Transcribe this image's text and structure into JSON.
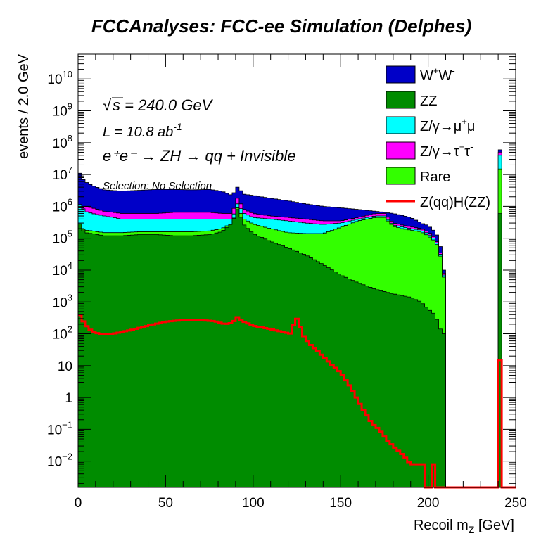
{
  "chart_data": {
    "type": "histogram",
    "title": "FCCAnalyses: FCC-ee Simulation (Delphes)",
    "xlabel": "Recoil m",
    "xlabel_sub": "Z",
    "xlabel_unit": " [GeV]",
    "ylabel": "events / 2.0 GeV",
    "x_range": [
      0,
      250
    ],
    "y_scale": "log",
    "y_range": [
      0.0015,
      60000000000
    ],
    "bin_width": 2.0,
    "x_ticks": [
      "0",
      "50",
      "100",
      "150",
      "200",
      "250"
    ],
    "y_ticks": [
      {
        "base": "10",
        "exp": "10",
        "value": 10000000000.0
      },
      {
        "base": "10",
        "exp": "9",
        "value": 1000000000.0
      },
      {
        "base": "10",
        "exp": "8",
        "value": 100000000.0
      },
      {
        "base": "10",
        "exp": "7",
        "value": 10000000.0
      },
      {
        "base": "10",
        "exp": "6",
        "value": 1000000.0
      },
      {
        "base": "10",
        "exp": "5",
        "value": 100000.0
      },
      {
        "base": "10",
        "exp": "4",
        "value": 10000.0
      },
      {
        "base": "10",
        "exp": "3",
        "value": 1000.0
      },
      {
        "base": "10",
        "exp": "2",
        "value": 100.0
      },
      {
        "base": "10",
        "exp": "",
        "value": 10
      },
      {
        "base": "1",
        "exp": "",
        "value": 1
      },
      {
        "base": "10",
        "exp": "−1",
        "value": 0.1
      },
      {
        "base": "10",
        "exp": "−2",
        "value": 0.01
      }
    ],
    "annotations": {
      "sqrt_s": "s = 240.0 GeV",
      "lumi": "L = 10.8 ab",
      "lumi_exp": "-1",
      "process": "e⁺e⁻ → ZH → qq + Invisible",
      "selection": "Selection: No Selection"
    },
    "legend_position": "top-right",
    "colors": {
      "ww": "#0000c8",
      "zz": "#008c00",
      "zgmumu": "#00ffff",
      "zgtautau": "#ff00ff",
      "rare": "#33ff00",
      "signal": "#ff0000"
    },
    "stack_top_curves": {
      "ww": [
        [
          0,
          15000000.0
        ],
        [
          2,
          8000000.0
        ],
        [
          4,
          6000000.0
        ],
        [
          8,
          4500000.0
        ],
        [
          15,
          3300000.0
        ],
        [
          25,
          3000000.0
        ],
        [
          35,
          3200000.0
        ],
        [
          45,
          3400000.0
        ],
        [
          55,
          3400000.0
        ],
        [
          65,
          3300000.0
        ],
        [
          75,
          3400000.0
        ],
        [
          82,
          3000000.0
        ],
        [
          88,
          2200000.0
        ],
        [
          91,
          4000000.0
        ],
        [
          95,
          2400000.0
        ],
        [
          100,
          2200000.0
        ],
        [
          110,
          1800000.0
        ],
        [
          120,
          1500000.0
        ],
        [
          130,
          1200000.0
        ],
        [
          140,
          1000000.0
        ],
        [
          150,
          900000.0
        ],
        [
          160,
          800000.0
        ],
        [
          170,
          700000.0
        ],
        [
          180,
          600000.0
        ],
        [
          190,
          450000.0
        ],
        [
          196,
          300000.0
        ],
        [
          200,
          250000.0
        ],
        [
          204,
          160000.0
        ],
        [
          206,
          100000.0
        ],
        [
          208,
          30000.0
        ],
        [
          209,
          10000.0
        ],
        [
          210,
          10000.0
        ]
      ],
      "zgtautau": [
        [
          0,
          1300000.0
        ],
        [
          2,
          1000000.0
        ],
        [
          4,
          1000000.0
        ],
        [
          8,
          900000.0
        ],
        [
          15,
          700000.0
        ],
        [
          25,
          600000.0
        ],
        [
          35,
          600000.0
        ],
        [
          45,
          600000.0
        ],
        [
          55,
          650000.0
        ],
        [
          65,
          650000.0
        ],
        [
          75,
          650000.0
        ],
        [
          82,
          600000.0
        ],
        [
          88,
          600000.0
        ],
        [
          91,
          1800000.0
        ],
        [
          95,
          800000.0
        ],
        [
          100,
          600000.0
        ],
        [
          110,
          500000.0
        ],
        [
          120,
          450000.0
        ],
        [
          130,
          400000.0
        ],
        [
          140,
          350000.0
        ],
        [
          150,
          350000.0
        ],
        [
          160,
          450000.0
        ],
        [
          170,
          600000.0
        ],
        [
          175,
          600000.0
        ],
        [
          180,
          300000.0
        ],
        [
          185,
          260000.0
        ],
        [
          190,
          230000.0
        ],
        [
          196,
          200000.0
        ],
        [
          200,
          160000.0
        ],
        [
          204,
          100000.0
        ],
        [
          206,
          60000.0
        ],
        [
          208,
          20000.0
        ],
        [
          209,
          8000.0
        ],
        [
          210,
          8000.0
        ]
      ],
      "zgmumu": [
        [
          0,
          1200000.0
        ],
        [
          2,
          1000000.0
        ],
        [
          4,
          700000.0
        ],
        [
          8,
          600000.0
        ],
        [
          15,
          500000.0
        ],
        [
          25,
          400000.0
        ],
        [
          35,
          400000.0
        ],
        [
          45,
          400000.0
        ],
        [
          55,
          400000.0
        ],
        [
          65,
          400000.0
        ],
        [
          75,
          400000.0
        ],
        [
          82,
          400000.0
        ],
        [
          88,
          400000.0
        ],
        [
          91,
          1200000.0
        ],
        [
          95,
          600000.0
        ],
        [
          100,
          450000.0
        ],
        [
          110,
          400000.0
        ],
        [
          120,
          350000.0
        ],
        [
          130,
          300000.0
        ],
        [
          140,
          270000.0
        ],
        [
          150,
          300000.0
        ],
        [
          160,
          400000.0
        ],
        [
          170,
          500000.0
        ],
        [
          175,
          500000.0
        ],
        [
          180,
          260000.0
        ],
        [
          185,
          230000.0
        ],
        [
          190,
          200000.0
        ],
        [
          196,
          180000.0
        ],
        [
          200,
          140000.0
        ],
        [
          204,
          90000.0
        ],
        [
          206,
          55000.0
        ],
        [
          208,
          18000.0
        ],
        [
          209,
          7000.0
        ],
        [
          210,
          7000.0
        ]
      ],
      "rare": [
        [
          0,
          400000.0
        ],
        [
          2,
          200000.0
        ],
        [
          4,
          180000.0
        ],
        [
          8,
          170000.0
        ],
        [
          15,
          150000.0
        ],
        [
          25,
          150000.0
        ],
        [
          35,
          160000.0
        ],
        [
          45,
          160000.0
        ],
        [
          55,
          160000.0
        ],
        [
          65,
          160000.0
        ],
        [
          75,
          170000.0
        ],
        [
          82,
          200000.0
        ],
        [
          88,
          300000.0
        ],
        [
          91,
          900000.0
        ],
        [
          95,
          400000.0
        ],
        [
          100,
          280000.0
        ],
        [
          110,
          200000.0
        ],
        [
          120,
          150000.0
        ],
        [
          130,
          140000.0
        ],
        [
          140,
          140000.0
        ],
        [
          150,
          220000.0
        ],
        [
          160,
          350000.0
        ],
        [
          170,
          450000.0
        ],
        [
          175,
          450000.0
        ],
        [
          180,
          240000.0
        ],
        [
          185,
          200000.0
        ],
        [
          190,
          180000.0
        ],
        [
          196,
          160000.0
        ],
        [
          200,
          120000.0
        ],
        [
          204,
          80000.0
        ],
        [
          206,
          50000.0
        ],
        [
          208,
          15000.0
        ],
        [
          209,
          6000.0
        ],
        [
          210,
          6000.0
        ]
      ],
      "zz": [
        [
          0,
          400000.0
        ],
        [
          2,
          200000.0
        ],
        [
          4,
          150000.0
        ],
        [
          8,
          140000.0
        ],
        [
          15,
          120000.0
        ],
        [
          25,
          120000.0
        ],
        [
          35,
          130000.0
        ],
        [
          45,
          130000.0
        ],
        [
          55,
          120000.0
        ],
        [
          65,
          120000.0
        ],
        [
          75,
          130000.0
        ],
        [
          82,
          160000.0
        ],
        [
          88,
          300000.0
        ],
        [
          91,
          800000.0
        ],
        [
          95,
          260000.0
        ],
        [
          100,
          140000.0
        ],
        [
          110,
          80000.0
        ],
        [
          120,
          50000.0
        ],
        [
          130,
          30000.0
        ],
        [
          140,
          15000.0
        ],
        [
          150,
          7000.0
        ],
        [
          160,
          4000.0
        ],
        [
          170,
          2500.0
        ],
        [
          180,
          1800.0
        ],
        [
          190,
          1400.0
        ],
        [
          196,
          1000.0
        ],
        [
          200,
          600.0
        ],
        [
          204,
          400.0
        ],
        [
          206,
          200.0
        ],
        [
          208,
          100.0
        ],
        [
          209,
          100.0
        ],
        [
          210,
          100.0
        ]
      ]
    },
    "spike_240": {
      "x_low": 240,
      "x_high": 242,
      "ww": 60000000.0,
      "zgtautau": 50000000.0,
      "zgmumu": 40000000.0,
      "rare": 15000000.0,
      "zz": 600000.0
    },
    "signal_curve": [
      [
        0,
        500.0
      ],
      [
        2,
        300.0
      ],
      [
        4,
        200.0
      ],
      [
        6,
        150.0
      ],
      [
        8,
        120.0
      ],
      [
        12,
        100.0
      ],
      [
        20,
        100.0
      ],
      [
        30,
        130.0
      ],
      [
        40,
        180.0
      ],
      [
        50,
        240.0
      ],
      [
        60,
        270.0
      ],
      [
        70,
        270.0
      ],
      [
        78,
        250.0
      ],
      [
        84,
        200.0
      ],
      [
        88,
        220.0
      ],
      [
        91,
        330.0
      ],
      [
        94,
        250.0
      ],
      [
        100,
        180.0
      ],
      [
        110,
        140.0
      ],
      [
        118,
        110.0
      ],
      [
        122,
        100.0
      ],
      [
        124,
        350.0
      ],
      [
        126,
        250.0
      ],
      [
        128,
        100.0
      ],
      [
        132,
        50.0
      ],
      [
        138,
        25.0
      ],
      [
        144,
        12.0
      ],
      [
        150,
        6
      ],
      [
        156,
        2
      ],
      [
        162,
        0.5
      ],
      [
        168,
        0.15
      ],
      [
        172,
        0.1
      ],
      [
        176,
        0.05
      ],
      [
        180,
        0.03
      ],
      [
        186,
        0.015
      ],
      [
        190,
        0.008
      ],
      [
        196,
        0.008
      ],
      [
        198,
        0.0015
      ],
      [
        200,
        0.0015
      ],
      [
        202,
        0.008
      ],
      [
        204,
        0.0015
      ],
      [
        240,
        0.0015
      ],
      [
        241,
        15
      ],
      [
        242,
        0.0015
      ],
      [
        250,
        0.0015
      ]
    ],
    "legend": [
      {
        "key": "ww",
        "label": "W",
        "sup1": "+",
        "mid": "W",
        "sup2": "-",
        "style": "box"
      },
      {
        "key": "zz",
        "label": "ZZ",
        "style": "box"
      },
      {
        "key": "zgmumu",
        "label": "Z/γ→μ",
        "sup1": "+",
        "mid": "μ",
        "sup2": "-",
        "style": "box"
      },
      {
        "key": "zgtautau",
        "label": "Z/γ→τ",
        "sup1": "+",
        "mid": "τ",
        "sup2": "-",
        "style": "box"
      },
      {
        "key": "rare",
        "label": "Rare",
        "style": "box"
      },
      {
        "key": "signal",
        "label": "Z(qq)H(ZZ)",
        "style": "line"
      }
    ]
  }
}
